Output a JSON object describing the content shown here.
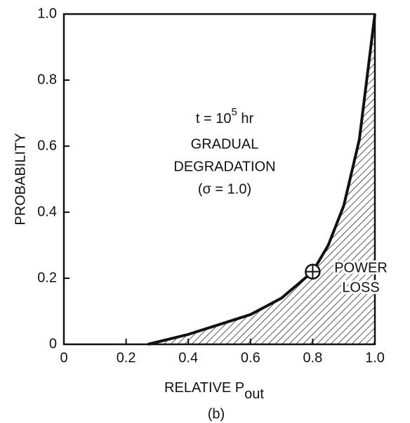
{
  "chart_data": {
    "type": "line",
    "ylabel": "PROBABILITY",
    "xlabel": "RELATIVE P",
    "xlabel_sub": "out",
    "caption": "(b)",
    "x": [
      0.27,
      0.4,
      0.5,
      0.6,
      0.7,
      0.75,
      0.8,
      0.85,
      0.9,
      0.95,
      1.0
    ],
    "series": [
      {
        "color": "#111111",
        "values": [
          0,
          0.03,
          0.06,
          0.09,
          0.14,
          0.18,
          0.22,
          0.3,
          0.42,
          0.62,
          1.0
        ]
      }
    ],
    "marker": {
      "x": 0.8,
      "y": 0.22
    },
    "xlim": [
      0,
      1
    ],
    "ylim": [
      0,
      1
    ],
    "xticks": [
      0,
      0.2,
      0.4,
      0.6,
      0.8,
      {
        "value": 1,
        "label": "1.0"
      }
    ],
    "yticks": [
      0,
      0.2,
      0.4,
      0.6,
      0.8,
      {
        "value": 1,
        "label": "1.0"
      }
    ],
    "annotations": {
      "time": {
        "text": "t = 10",
        "sup": "5",
        "after": " hr"
      },
      "lines": [
        "GRADUAL",
        "DEGRADATION",
        "(σ = 1.0)"
      ],
      "loss": [
        "POWER",
        "LOSS"
      ]
    },
    "hatch": true
  }
}
